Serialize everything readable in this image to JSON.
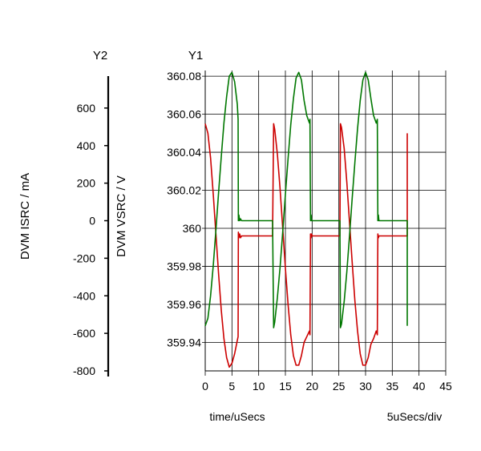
{
  "chart_data": {
    "type": "line",
    "y2_axis_header": "Y2",
    "y1_axis_header": "Y1",
    "xlabel": "time/uSecs",
    "x_scale_note": "5uSecs/div",
    "y1label": "DVM VSRC / V",
    "y2label": "DVM ISRC / mA",
    "xlim": [
      0,
      45
    ],
    "x_ticks": [
      "0",
      "5",
      "10",
      "15",
      "20",
      "25",
      "30",
      "35",
      "40",
      "45"
    ],
    "y1lim": [
      359.925,
      360.083
    ],
    "y1_ticks": [
      "360.08",
      "360.06",
      "360.04",
      "360.02",
      "360",
      "359.98",
      "359.96",
      "359.94"
    ],
    "y2lim": [
      -800,
      800
    ],
    "y2_ticks": [
      "600",
      "400",
      "200",
      "0",
      "-200",
      "-400",
      "-600",
      "-800"
    ],
    "grid": true,
    "legend": "none",
    "colors": {
      "vsrc": "#cc0000",
      "isrc": "#007700",
      "grid": "#000000"
    },
    "series": [
      {
        "axis": "y1",
        "color": "#cc0000",
        "x": [
          0,
          0.5,
          1,
          1.5,
          2,
          2.5,
          3,
          3.5,
          4,
          4.5,
          5,
          5.5,
          6,
          6.15,
          6.2,
          6.3,
          6.45,
          6.6,
          6.8,
          7,
          8,
          9,
          10,
          11,
          12,
          12.6,
          12.8,
          13,
          13.5,
          14,
          14.5,
          15,
          15.5,
          16,
          16.5,
          17,
          17.5,
          18,
          18.5,
          19,
          19.5,
          19.6,
          19.7,
          19.8,
          19.9,
          20,
          21,
          22,
          23,
          24,
          25,
          25.2,
          25.3,
          25.5,
          26,
          26.5,
          27,
          27.5,
          28,
          28.5,
          29,
          29.5,
          30,
          30.5,
          31,
          31.5,
          32,
          32.2,
          32.3,
          32.4,
          32.5,
          33,
          34,
          35,
          36,
          37,
          37.8,
          37.8,
          37.8
        ],
        "y": [
          360.055,
          360.05,
          360.037,
          360.018,
          359.997,
          359.976,
          359.957,
          359.942,
          359.932,
          359.927,
          359.929,
          359.934,
          359.941,
          359.943,
          359.998,
          359.995,
          359.997,
          359.995,
          359.996,
          359.996,
          359.996,
          359.996,
          359.996,
          359.996,
          359.996,
          359.996,
          360.055,
          360.052,
          360.039,
          360.021,
          360.0,
          359.979,
          359.96,
          359.944,
          359.933,
          359.928,
          359.928,
          359.933,
          359.94,
          359.943,
          359.946,
          359.944,
          359.997,
          359.995,
          359.997,
          359.996,
          359.996,
          359.996,
          359.996,
          359.996,
          359.996,
          359.996,
          360.055,
          360.053,
          360.042,
          360.024,
          360.003,
          359.982,
          359.962,
          359.946,
          359.934,
          359.928,
          359.928,
          359.932,
          359.939,
          359.942,
          359.946,
          359.944,
          359.997,
          359.995,
          359.996,
          359.996,
          359.996,
          359.996,
          359.996,
          359.996,
          359.996,
          360.046,
          360.05
        ]
      },
      {
        "axis": "y2",
        "color": "#007700",
        "x": [
          0,
          0.5,
          1,
          1.5,
          2,
          2.5,
          3,
          3.5,
          4,
          4.5,
          5,
          5.5,
          6,
          6.15,
          6.2,
          6.3,
          6.45,
          6.6,
          6.8,
          7,
          8,
          9,
          10,
          11,
          12,
          12.6,
          12.8,
          13,
          13.5,
          14,
          14.5,
          15,
          15.5,
          16,
          16.5,
          17,
          17.5,
          18,
          18.5,
          19,
          19.5,
          19.6,
          19.7,
          19.8,
          19.9,
          20,
          21,
          22,
          23,
          24,
          25,
          25.2,
          25.3,
          25.5,
          26,
          26.5,
          27,
          27.5,
          28,
          28.5,
          29,
          29.5,
          30,
          30.5,
          31,
          31.5,
          32,
          32.2,
          32.3,
          32.4,
          32.5,
          33,
          34,
          35,
          36,
          37,
          37.8,
          37.8,
          37.8
        ],
        "y": [
          -560,
          -520,
          -400,
          -240,
          -50,
          150,
          340,
          520,
          660,
          770,
          790,
          740,
          620,
          540,
          0,
          30,
          0,
          10,
          0,
          0,
          0,
          0,
          0,
          0,
          0,
          0,
          -570,
          -540,
          -410,
          -250,
          -60,
          140,
          330,
          510,
          650,
          760,
          790,
          750,
          640,
          560,
          520,
          540,
          0,
          30,
          0,
          0,
          0,
          0,
          0,
          0,
          0,
          0,
          -570,
          -550,
          -430,
          -270,
          -80,
          120,
          310,
          490,
          640,
          750,
          790,
          750,
          650,
          560,
          520,
          540,
          0,
          30,
          0,
          0,
          0,
          0,
          0,
          0,
          0,
          -520,
          -560
        ]
      }
    ]
  }
}
